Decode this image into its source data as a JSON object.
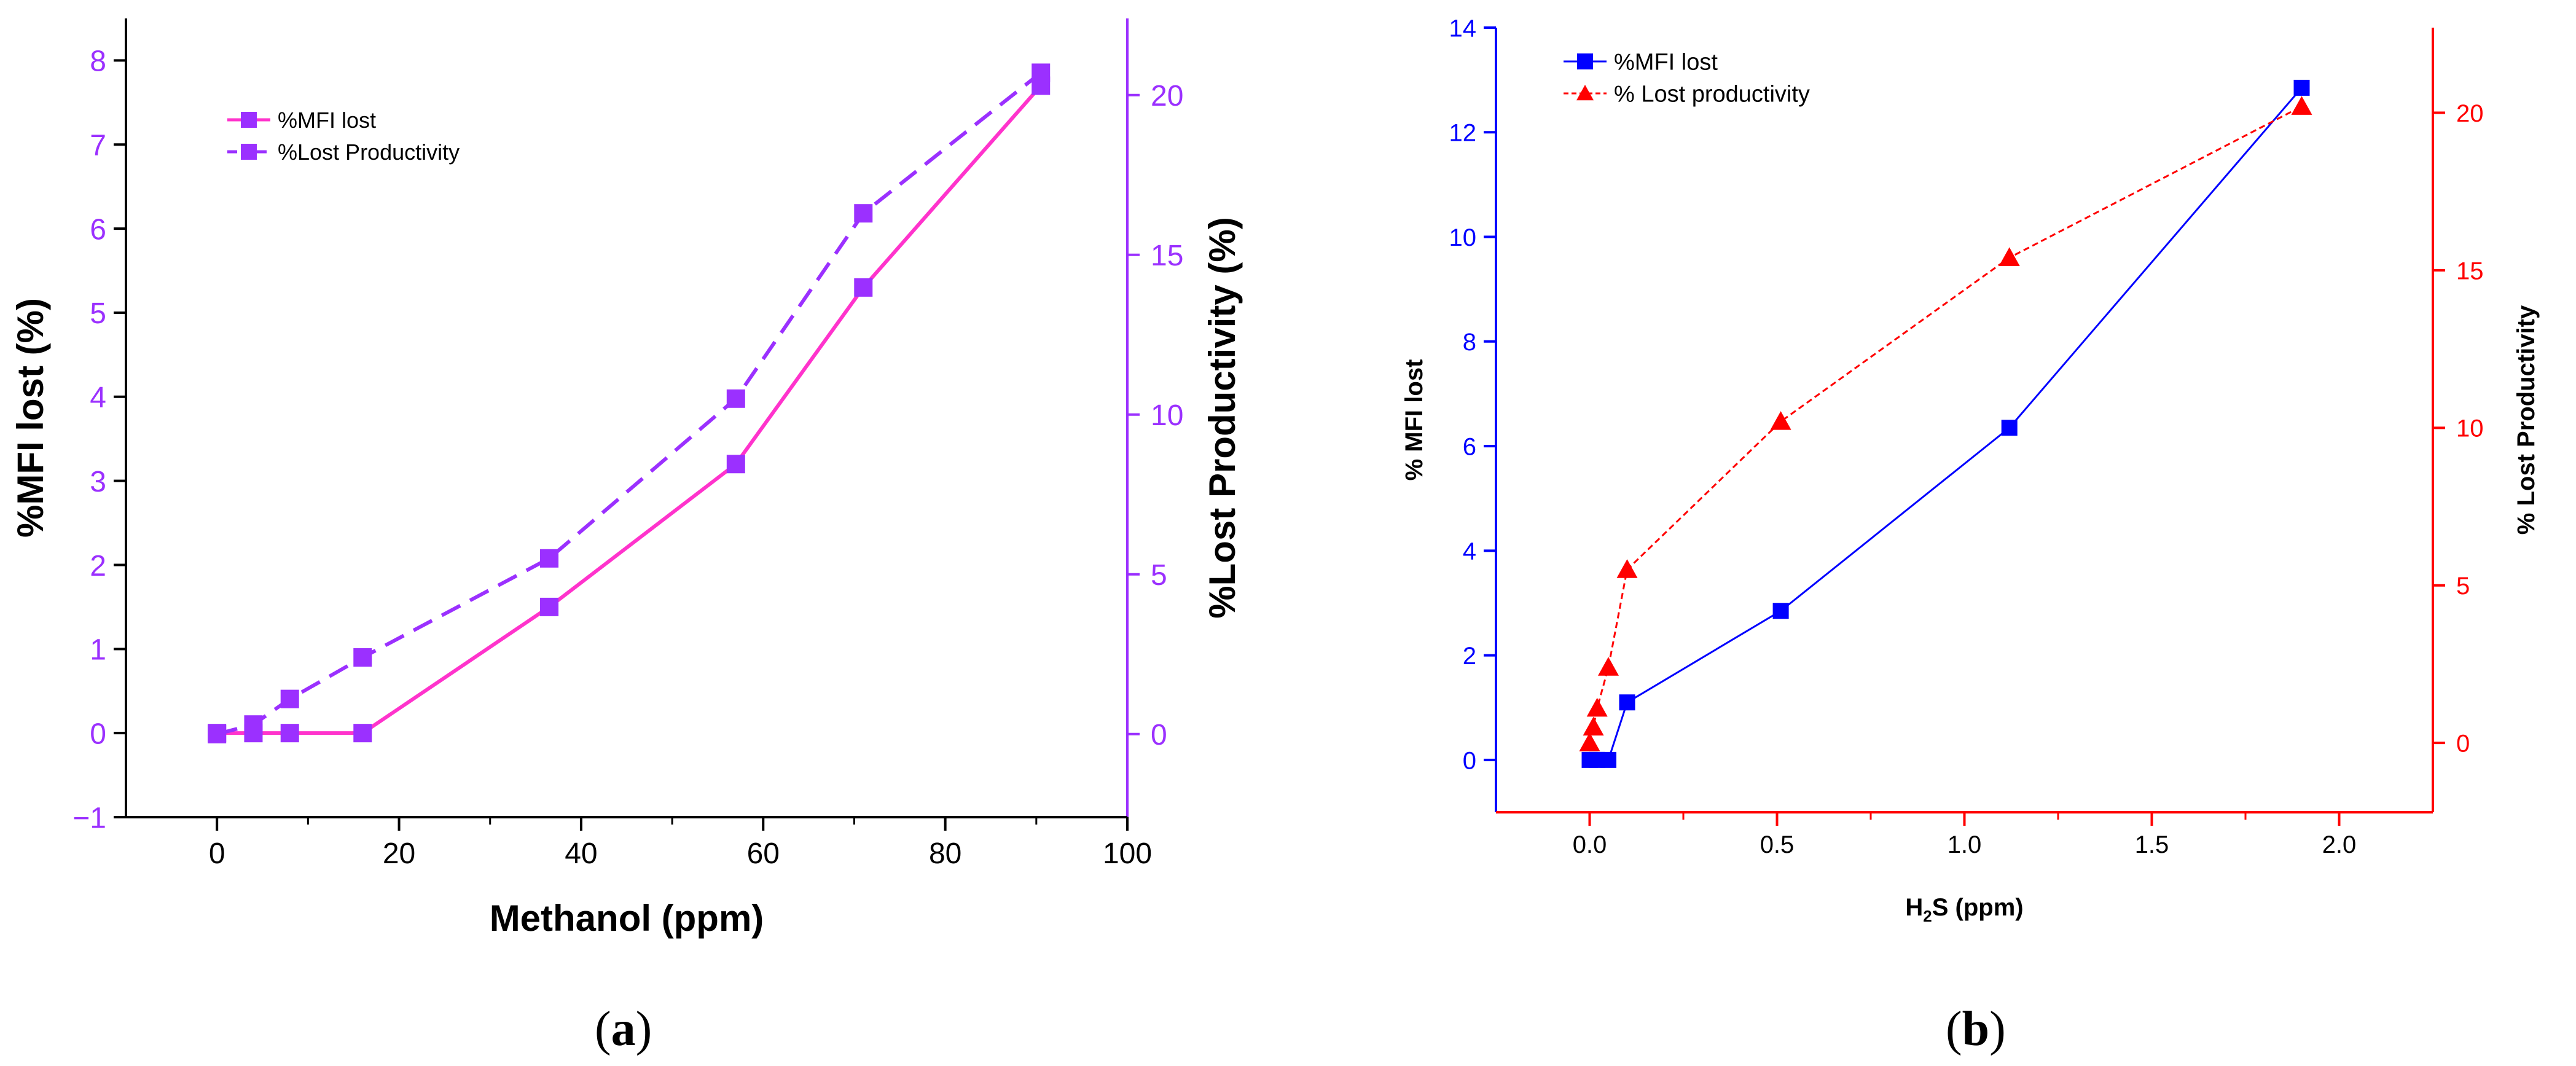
{
  "chart_data": [
    {
      "type": "line",
      "panel_label": "a",
      "xlabel": "Methanol (ppm)",
      "ylabel": "%MFI lost (%)",
      "y2label": "%Lost Productivity (%)",
      "xlim": [
        -10,
        100
      ],
      "ylim": [
        -1,
        8.5
      ],
      "y2lim": [
        -2.6,
        22.4
      ],
      "x_ticks": [
        0,
        20,
        40,
        60,
        80,
        100
      ],
      "y_ticks": [
        -1,
        0,
        1,
        2,
        3,
        4,
        5,
        6,
        7,
        8
      ],
      "y2_ticks": [
        0,
        5,
        10,
        15,
        20
      ],
      "grid": false,
      "legend_position": "top-left",
      "colors": {
        "axis_left": "#000000",
        "axis_right": "#9b30ff",
        "tick_left": "#9b30ff",
        "tick_right": "#9b30ff",
        "tick_x": "#000000"
      },
      "series": [
        {
          "name": "%MFI lost",
          "axis": "left",
          "color": "#ff33cc",
          "marker_color": "#9b30ff",
          "dash": false,
          "x": [
            0,
            4,
            8,
            16,
            36.5,
            57,
            71,
            90.5
          ],
          "y": [
            0,
            0,
            0,
            0,
            1.5,
            3.2,
            5.3,
            7.7
          ]
        },
        {
          "name": "%Lost Productivity",
          "axis": "right",
          "color": "#9b30ff",
          "marker_color": "#9b30ff",
          "dash": true,
          "x": [
            0,
            4,
            8,
            16,
            36.5,
            57,
            71,
            90.5
          ],
          "y": [
            0,
            0.3,
            1.1,
            2.4,
            5.5,
            10.5,
            16.3,
            20.7
          ]
        }
      ]
    },
    {
      "type": "line",
      "panel_label": "b",
      "xlabel": "H2S (ppm)",
      "ylabel": "% MFI lost",
      "y2label": "% Lost Productivity",
      "xlim": [
        -0.25,
        2.25
      ],
      "ylim": [
        -1,
        14
      ],
      "y2lim": [
        -2.2,
        22.7
      ],
      "x_ticks": [
        0.0,
        0.5,
        1.0,
        1.5,
        2.0
      ],
      "y_ticks": [
        0,
        2,
        4,
        6,
        8,
        10,
        12,
        14
      ],
      "y2_ticks": [
        0,
        5,
        10,
        15,
        20
      ],
      "grid": false,
      "legend_position": "top-left",
      "colors": {
        "axis_left": "#0000ff",
        "axis_right": "#ff0000",
        "axis_bottom": "#ff0000",
        "tick_left": "#0000ff",
        "tick_right": "#ff0000",
        "tick_x": "#000000"
      },
      "series": [
        {
          "name": "%MFI lost",
          "axis": "left",
          "color": "#0000ff",
          "marker": "square",
          "dash": false,
          "x": [
            0,
            0.02,
            0.05,
            0.1,
            0.51,
            1.12,
            1.9
          ],
          "y": [
            0,
            0,
            0,
            1.1,
            2.85,
            6.35,
            12.85
          ]
        },
        {
          "name": "% Lost productivity",
          "axis": "right",
          "color": "#ff0000",
          "marker": "triangle",
          "dash": true,
          "x": [
            0,
            0.01,
            0.02,
            0.05,
            0.1,
            0.51,
            1.12,
            1.9
          ],
          "y": [
            0,
            0.5,
            1.1,
            2.4,
            5.5,
            10.2,
            15.4,
            20.2
          ]
        }
      ]
    }
  ],
  "labels": {
    "a": "a",
    "b": "b"
  }
}
